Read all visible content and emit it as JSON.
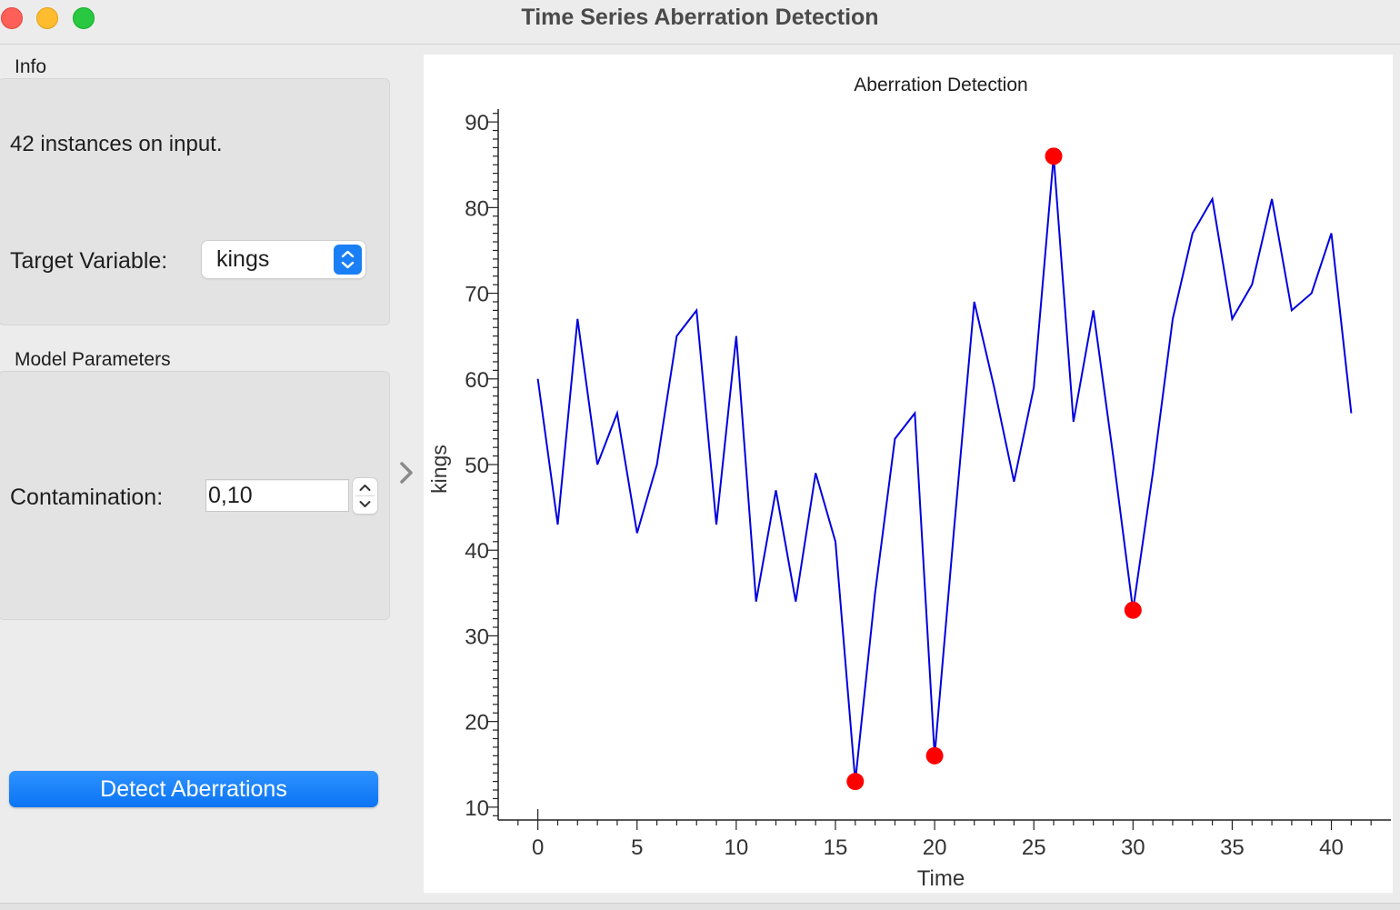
{
  "window": {
    "title": "Time Series Aberration Detection"
  },
  "info": {
    "section_title": "Info",
    "instances_text": "42 instances on input.",
    "target_label": "Target Variable:",
    "target_value": "kings"
  },
  "model": {
    "section_title": "Model Parameters",
    "contamination_label": "Contamination:",
    "contamination_value": "0,10"
  },
  "actions": {
    "detect_label": "Detect Aberrations"
  },
  "colors": {
    "line": "#0000e0",
    "outlier": "#ff0000",
    "accent": "#0a7bff"
  },
  "icons": {
    "collapse": "chevron-right-icon",
    "select": "updown-chevron-icon",
    "stepper": "stepper-icon"
  },
  "chart_data": {
    "type": "line",
    "title": "Aberration Detection",
    "xlabel": "Time",
    "ylabel": "kings",
    "xlim": [
      -2,
      43
    ],
    "ylim": [
      8.5,
      91.5
    ],
    "xticks": [
      0,
      5,
      10,
      15,
      20,
      25,
      30,
      35,
      40
    ],
    "yticks": [
      10,
      20,
      30,
      40,
      50,
      60,
      70,
      80,
      90
    ],
    "grid": false,
    "x": [
      0,
      1,
      2,
      3,
      4,
      5,
      6,
      7,
      8,
      9,
      10,
      11,
      12,
      13,
      14,
      15,
      16,
      17,
      18,
      19,
      20,
      21,
      22,
      23,
      24,
      25,
      26,
      27,
      28,
      29,
      30,
      31,
      32,
      33,
      34,
      35,
      36,
      37,
      38,
      39,
      40,
      41
    ],
    "series": [
      {
        "values": [
          60,
          43,
          67,
          50,
          56,
          42,
          50,
          65,
          68,
          43,
          65,
          34,
          47,
          34,
          49,
          41,
          13,
          35,
          53,
          56,
          16,
          43,
          69,
          59,
          48,
          59,
          86,
          55,
          68,
          51,
          33,
          49,
          67,
          77,
          81,
          67,
          71,
          81,
          68,
          70,
          77,
          56
        ]
      }
    ],
    "outliers": {
      "x": [
        16,
        20,
        26,
        30
      ],
      "y": [
        13,
        16,
        86,
        33
      ]
    }
  }
}
